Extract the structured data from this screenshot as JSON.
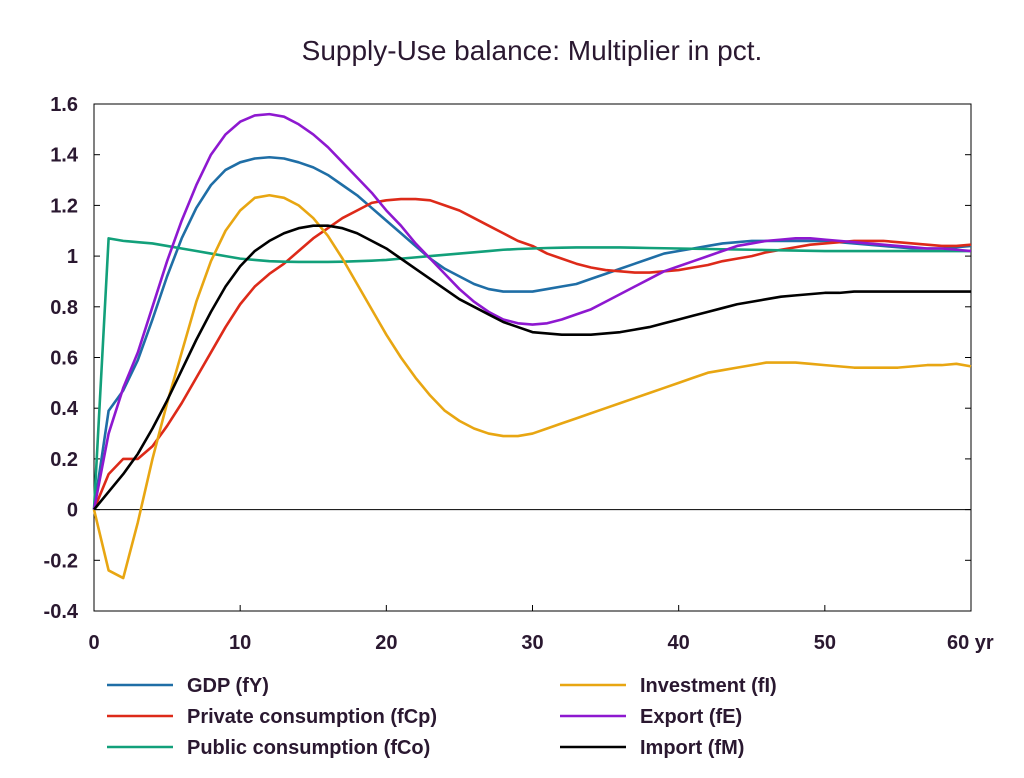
{
  "chart_data": {
    "type": "line",
    "title": "Supply-Use balance: Multiplier in pct.",
    "xlabel": "",
    "ylabel": "",
    "xlim": [
      0,
      60
    ],
    "ylim": [
      -0.4,
      1.6
    ],
    "x_ticks": [
      0,
      10,
      20,
      30,
      40,
      50,
      60
    ],
    "x_tick_labels": [
      "0",
      "10",
      "20",
      "30",
      "40",
      "50",
      "60 yr"
    ],
    "y_ticks": [
      -0.4,
      -0.2,
      0,
      0.2,
      0.4,
      0.6,
      0.8,
      1,
      1.2,
      1.4,
      1.6
    ],
    "y_tick_labels": [
      "-0.4",
      "-0.2",
      "0",
      "0.2",
      "0.4",
      "0.6",
      "0.8",
      "1",
      "1.2",
      "1.4",
      "1.6"
    ],
    "grid": false,
    "legend_position": "bottom",
    "x": [
      0,
      1,
      2,
      3,
      4,
      5,
      6,
      7,
      8,
      9,
      10,
      11,
      12,
      13,
      14,
      15,
      16,
      17,
      18,
      19,
      20,
      21,
      22,
      23,
      24,
      25,
      26,
      27,
      28,
      29,
      30,
      31,
      32,
      33,
      34,
      35,
      36,
      37,
      38,
      39,
      40,
      41,
      42,
      43,
      44,
      45,
      46,
      47,
      48,
      49,
      50,
      51,
      52,
      53,
      54,
      55,
      56,
      57,
      58,
      59,
      60
    ],
    "series": [
      {
        "name": "GDP (fY)",
        "color": "#1f6ea6",
        "values": [
          0,
          0.39,
          0.47,
          0.59,
          0.75,
          0.92,
          1.07,
          1.19,
          1.28,
          1.34,
          1.37,
          1.385,
          1.39,
          1.385,
          1.37,
          1.35,
          1.32,
          1.28,
          1.24,
          1.19,
          1.14,
          1.09,
          1.04,
          0.99,
          0.95,
          0.92,
          0.89,
          0.87,
          0.86,
          0.86,
          0.86,
          0.87,
          0.88,
          0.89,
          0.91,
          0.93,
          0.95,
          0.97,
          0.99,
          1.01,
          1.02,
          1.03,
          1.04,
          1.05,
          1.055,
          1.06,
          1.06,
          1.06,
          1.06,
          1.06,
          1.06,
          1.055,
          1.05,
          1.045,
          1.04,
          1.035,
          1.03,
          1.03,
          1.03,
          1.035,
          1.04
        ]
      },
      {
        "name": "Private consumption (fCp)",
        "color": "#dd2a19",
        "values": [
          0,
          0.14,
          0.2,
          0.2,
          0.25,
          0.33,
          0.42,
          0.52,
          0.62,
          0.72,
          0.81,
          0.88,
          0.93,
          0.97,
          1.02,
          1.07,
          1.11,
          1.15,
          1.18,
          1.21,
          1.22,
          1.225,
          1.225,
          1.22,
          1.2,
          1.18,
          1.15,
          1.12,
          1.09,
          1.06,
          1.04,
          1.01,
          0.99,
          0.97,
          0.955,
          0.945,
          0.94,
          0.935,
          0.935,
          0.94,
          0.945,
          0.955,
          0.965,
          0.98,
          0.99,
          1.0,
          1.015,
          1.025,
          1.035,
          1.045,
          1.05,
          1.055,
          1.06,
          1.06,
          1.06,
          1.055,
          1.05,
          1.045,
          1.04,
          1.04,
          1.045
        ]
      },
      {
        "name": "Public consumption (fCo)",
        "color": "#12a07a",
        "values": [
          0,
          1.07,
          1.06,
          1.055,
          1.05,
          1.04,
          1.03,
          1.02,
          1.01,
          1.0,
          0.99,
          0.985,
          0.98,
          0.978,
          0.977,
          0.977,
          0.977,
          0.978,
          0.98,
          0.982,
          0.985,
          0.99,
          0.995,
          1.0,
          1.005,
          1.01,
          1.015,
          1.02,
          1.025,
          1.028,
          1.03,
          1.032,
          1.033,
          1.034,
          1.034,
          1.034,
          1.034,
          1.033,
          1.032,
          1.031,
          1.03,
          1.029,
          1.028,
          1.027,
          1.026,
          1.025,
          1.024,
          1.023,
          1.022,
          1.021,
          1.02,
          1.02,
          1.02,
          1.02,
          1.02,
          1.02,
          1.02,
          1.02,
          1.02,
          1.02,
          1.02
        ]
      },
      {
        "name": "Investment (fI)",
        "color": "#e8a612",
        "values": [
          0,
          -0.24,
          -0.27,
          -0.05,
          0.2,
          0.42,
          0.62,
          0.82,
          0.98,
          1.1,
          1.18,
          1.23,
          1.24,
          1.23,
          1.2,
          1.15,
          1.08,
          0.99,
          0.89,
          0.79,
          0.69,
          0.6,
          0.52,
          0.45,
          0.39,
          0.35,
          0.32,
          0.3,
          0.29,
          0.29,
          0.3,
          0.32,
          0.34,
          0.36,
          0.38,
          0.4,
          0.42,
          0.44,
          0.46,
          0.48,
          0.5,
          0.52,
          0.54,
          0.55,
          0.56,
          0.57,
          0.58,
          0.58,
          0.58,
          0.575,
          0.57,
          0.565,
          0.56,
          0.56,
          0.56,
          0.56,
          0.565,
          0.57,
          0.57,
          0.575,
          0.565
        ]
      },
      {
        "name": "Export (fE)",
        "color": "#8e18d0",
        "values": [
          0,
          0.3,
          0.48,
          0.62,
          0.8,
          0.98,
          1.14,
          1.28,
          1.4,
          1.48,
          1.53,
          1.555,
          1.56,
          1.55,
          1.52,
          1.48,
          1.43,
          1.37,
          1.31,
          1.25,
          1.18,
          1.12,
          1.05,
          0.99,
          0.93,
          0.87,
          0.82,
          0.78,
          0.75,
          0.735,
          0.73,
          0.735,
          0.75,
          0.77,
          0.79,
          0.82,
          0.85,
          0.88,
          0.91,
          0.94,
          0.96,
          0.98,
          1.0,
          1.02,
          1.04,
          1.05,
          1.06,
          1.065,
          1.07,
          1.07,
          1.065,
          1.06,
          1.055,
          1.05,
          1.045,
          1.04,
          1.035,
          1.03,
          1.03,
          1.025,
          1.02
        ]
      },
      {
        "name": "Import (fM)",
        "color": "#000000",
        "values": [
          0,
          0.07,
          0.14,
          0.22,
          0.32,
          0.43,
          0.55,
          0.67,
          0.78,
          0.88,
          0.96,
          1.02,
          1.06,
          1.09,
          1.11,
          1.12,
          1.12,
          1.11,
          1.09,
          1.06,
          1.03,
          0.99,
          0.95,
          0.91,
          0.87,
          0.83,
          0.8,
          0.77,
          0.74,
          0.72,
          0.7,
          0.695,
          0.69,
          0.69,
          0.69,
          0.695,
          0.7,
          0.71,
          0.72,
          0.735,
          0.75,
          0.765,
          0.78,
          0.795,
          0.81,
          0.82,
          0.83,
          0.84,
          0.845,
          0.85,
          0.855,
          0.855,
          0.86,
          0.86,
          0.86,
          0.86,
          0.86,
          0.86,
          0.86,
          0.86,
          0.86
        ]
      }
    ]
  }
}
